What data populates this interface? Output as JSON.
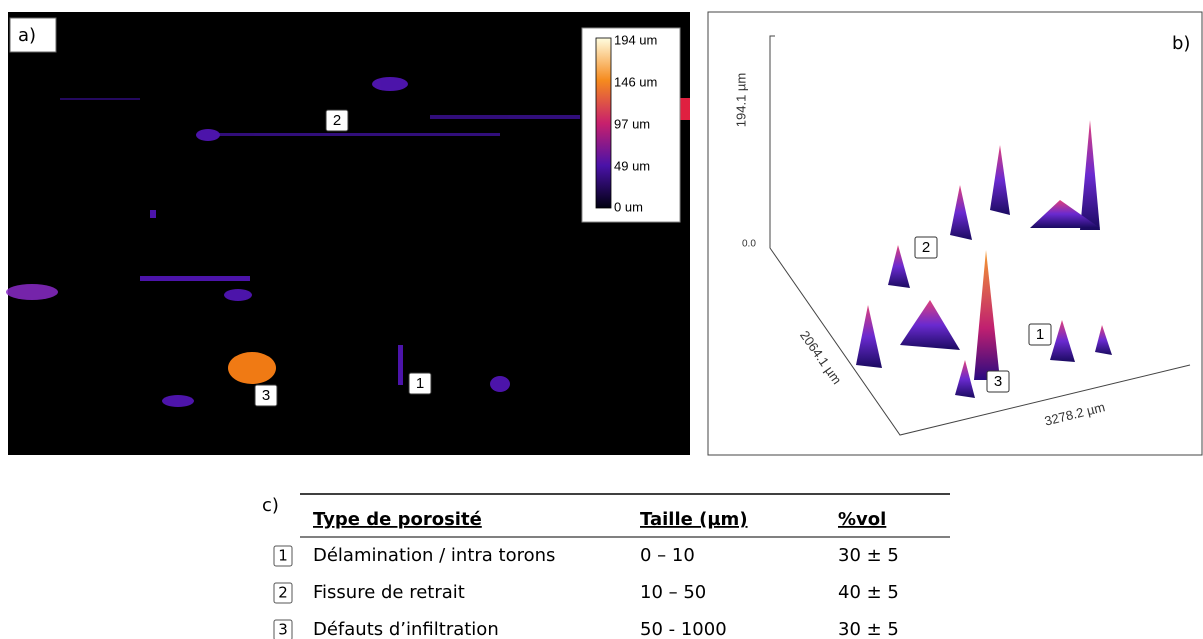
{
  "panel_a": {
    "label": "a)",
    "colorbar": [
      "194 um",
      "146 um",
      "97 um",
      "49 um",
      "0 um"
    ],
    "markers": [
      "2",
      "1",
      "3"
    ]
  },
  "panel_b": {
    "label": "b)",
    "z_axis": "194.1 µm",
    "z_origin": "0.0",
    "y_axis": "2064.1 µm",
    "x_axis": "3278.2 µm",
    "markers": [
      "2",
      "1",
      "3"
    ]
  },
  "panel_c": {
    "label": "c)",
    "header": [
      "Type de porosité",
      "Taille (µm)",
      "%vol"
    ],
    "rows": [
      [
        "1",
        "Délamination / intra torons",
        "0 – 10",
        "30 ± 5"
      ],
      [
        "2",
        "Fissure de retrait",
        "10 – 50",
        "40 ± 5"
      ],
      [
        "3",
        "Défauts d’infiltration",
        "50 - 1000",
        "30 ± 5"
      ]
    ]
  }
}
